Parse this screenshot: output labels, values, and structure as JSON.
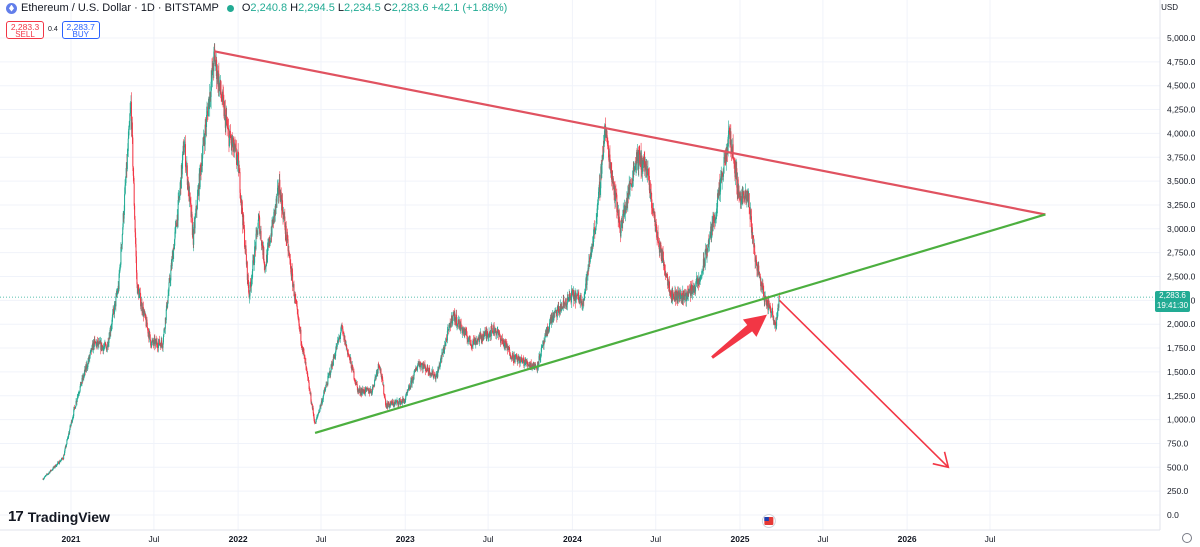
{
  "header": {
    "symbol": "Ethereum / U.S. Dollar · 1D · BITSTAMP",
    "open_label": "O",
    "open": "2,240.8",
    "high_label": "H",
    "high": "2,294.5",
    "low_label": "L",
    "low": "2,234.5",
    "close_label": "C",
    "close": "2,283.6",
    "change": "+42.1 (+1.88%)"
  },
  "trade": {
    "sell_price": "2,283.3",
    "sell_label": "SELL",
    "spread": "0.4",
    "buy_price": "2,283.7",
    "buy_label": "BUY"
  },
  "currency": "USD",
  "last_price": "2,283.6",
  "countdown": "19:41:30",
  "brand": "TradingView",
  "colors": {
    "up": "#22ab94",
    "down": "#f23645",
    "resistance": "#e05260",
    "support": "#4caf3f",
    "arrow": "#f23645"
  },
  "chart_data": {
    "type": "candlestick",
    "title": "Ethereum / U.S. Dollar · 1D · BITSTAMP",
    "x_ticks": [
      "2021",
      "Jul",
      "2022",
      "Jul",
      "2023",
      "Jul",
      "2024",
      "Jul",
      "2025",
      "Jul",
      "2026",
      "Jul"
    ],
    "y_ticks": [
      "5,000.0",
      "4,750.0",
      "4,500.0",
      "4,250.0",
      "4,000.0",
      "3,750.0",
      "3,500.0",
      "3,250.0",
      "3,000.0",
      "2,750.0",
      "2,500.0",
      "2,250.0",
      "2,000.0",
      "1,750.0",
      "1,500.0",
      "1,250.0",
      "1,000.0",
      "750.0",
      "500.0",
      "250.0",
      "0.0"
    ],
    "ylim": [
      0,
      5000
    ],
    "xlim": [
      "2020-11-01",
      "2026-12-31"
    ],
    "price_path": [
      [
        "2020-11-01",
        380
      ],
      [
        "2020-12-15",
        600
      ],
      [
        "2021-01-15",
        1250
      ],
      [
        "2021-02-20",
        1800
      ],
      [
        "2021-03-20",
        1750
      ],
      [
        "2021-04-15",
        2400
      ],
      [
        "2021-05-12",
        4300
      ],
      [
        "2021-05-25",
        2400
      ],
      [
        "2021-06-25",
        1800
      ],
      [
        "2021-07-20",
        1800
      ],
      [
        "2021-08-25",
        3300
      ],
      [
        "2021-09-05",
        3900
      ],
      [
        "2021-09-25",
        2900
      ],
      [
        "2021-10-15",
        3800
      ],
      [
        "2021-11-10",
        4800
      ],
      [
        "2021-12-10",
        4000
      ],
      [
        "2022-01-01",
        3700
      ],
      [
        "2022-01-25",
        2300
      ],
      [
        "2022-02-15",
        3100
      ],
      [
        "2022-03-01",
        2600
      ],
      [
        "2022-04-01",
        3450
      ],
      [
        "2022-05-10",
        2100
      ],
      [
        "2022-06-18",
        950
      ],
      [
        "2022-07-15",
        1400
      ],
      [
        "2022-08-15",
        1950
      ],
      [
        "2022-09-20",
        1300
      ],
      [
        "2022-10-20",
        1300
      ],
      [
        "2022-11-05",
        1600
      ],
      [
        "2022-11-20",
        1150
      ],
      [
        "2022-12-31",
        1200
      ],
      [
        "2023-01-30",
        1600
      ],
      [
        "2023-03-10",
        1450
      ],
      [
        "2023-04-15",
        2100
      ],
      [
        "2023-05-25",
        1800
      ],
      [
        "2023-07-15",
        1950
      ],
      [
        "2023-08-25",
        1650
      ],
      [
        "2023-10-15",
        1550
      ],
      [
        "2023-11-15",
        2050
      ],
      [
        "2023-12-31",
        2300
      ],
      [
        "2024-01-25",
        2250
      ],
      [
        "2024-02-25",
        3200
      ],
      [
        "2024-03-12",
        4050
      ],
      [
        "2024-04-15",
        3000
      ],
      [
        "2024-05-20",
        3750
      ],
      [
        "2024-06-10",
        3650
      ],
      [
        "2024-07-05",
        2900
      ],
      [
        "2024-08-05",
        2300
      ],
      [
        "2024-09-05",
        2300
      ],
      [
        "2024-10-05",
        2450
      ],
      [
        "2024-11-10",
        3200
      ],
      [
        "2024-12-10",
        4000
      ],
      [
        "2024-12-30",
        3350
      ],
      [
        "2025-01-20",
        3300
      ],
      [
        "2025-02-03",
        2700
      ],
      [
        "2025-02-25",
        2250
      ],
      [
        "2025-03-10",
        2150
      ],
      [
        "2025-03-20",
        2000
      ],
      [
        "2025-03-28",
        2283.6
      ]
    ],
    "annotations": {
      "resistance_line": [
        [
          "2021-11-10",
          4860
        ],
        [
          "2026-10-30",
          3150
        ]
      ],
      "support_line": [
        [
          "2022-06-18",
          860
        ],
        [
          "2026-10-30",
          3150
        ]
      ],
      "projection_arrow": [
        [
          "2025-03-28",
          2250
        ],
        [
          "2026-04-01",
          500
        ]
      ],
      "highlight_arrow": [
        [
          "2024-11-01",
          1650
        ],
        [
          "2025-03-01",
          2100
        ]
      ]
    }
  }
}
